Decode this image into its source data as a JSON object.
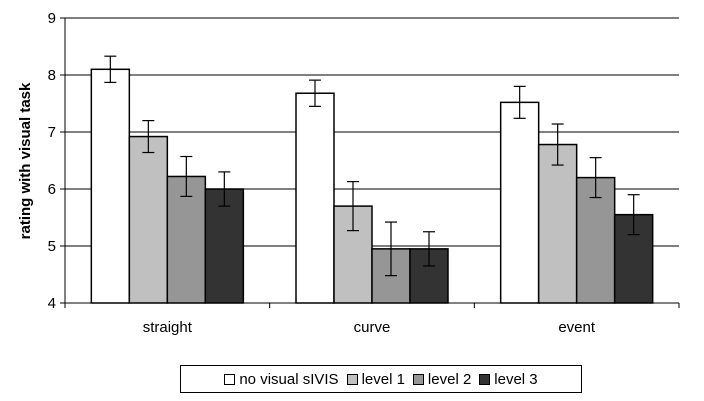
{
  "chart_data": {
    "type": "bar",
    "title": "",
    "xlabel": "",
    "ylabel": "rating with visual task",
    "ylim": [
      4,
      9
    ],
    "yticks": [
      4,
      5,
      6,
      7,
      8,
      9
    ],
    "grid": true,
    "legend_position": "bottom",
    "categories": [
      "straight",
      "curve",
      "event"
    ],
    "series": [
      {
        "name": "no visual sIVIS",
        "color": "#ffffff",
        "values": [
          8.1,
          7.68,
          7.52
        ],
        "error": [
          0.23,
          0.23,
          0.28
        ]
      },
      {
        "name": "level 1",
        "color": "#c0c0c0",
        "values": [
          6.92,
          5.7,
          6.78
        ],
        "error": [
          0.28,
          0.43,
          0.36
        ]
      },
      {
        "name": "level 2",
        "color": "#969696",
        "values": [
          6.22,
          4.95,
          6.2
        ],
        "error": [
          0.35,
          0.47,
          0.35
        ]
      },
      {
        "name": "level 3",
        "color": "#333333",
        "values": [
          6.0,
          4.95,
          5.55
        ],
        "error": [
          0.3,
          0.3,
          0.35
        ]
      }
    ]
  }
}
